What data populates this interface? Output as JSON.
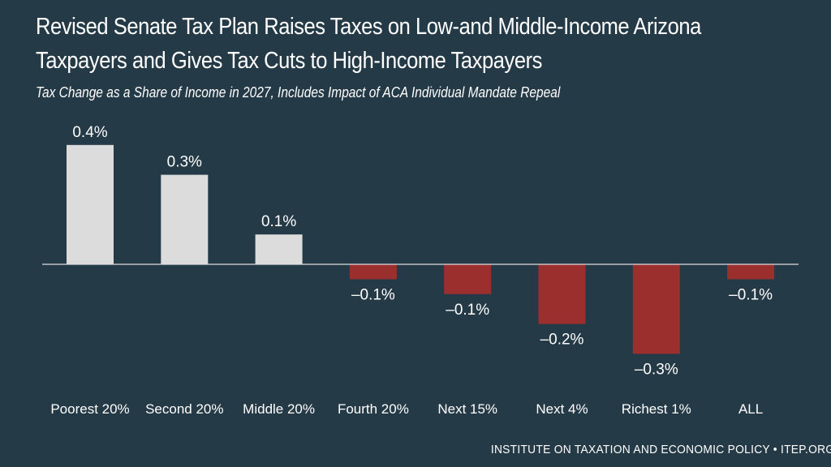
{
  "title_line1": "Revised Senate Tax Plan Raises Taxes on Low-and Middle-Income Arizona",
  "title_line2": "Taxpayers and Gives Tax Cuts to High-Income Taxpayers",
  "subtitle": "Tax Change as a Share of Income in 2027, Includes Impact of ACA Individual Mandate Repeal",
  "footer": "INSTITUTE ON TAXATION AND ECONOMIC POLICY • ITEP.ORG",
  "colors": {
    "background": "#253a47",
    "positive_bar": "#dcdcdc",
    "negative_bar": "#9b2f2e",
    "axis_line": "#dcdcdc",
    "text": "#ffffff"
  },
  "chart_data": {
    "type": "bar",
    "title": "Revised Senate Tax Plan Raises Taxes on Low-and Middle-Income Arizona Taxpayers and Gives Tax Cuts to High-Income Taxpayers",
    "subtitle": "Tax Change as a Share of Income in 2027, Includes Impact of ACA Individual Mandate Repeal",
    "xlabel": "",
    "ylabel": "",
    "categories": [
      "Poorest 20%",
      "Second 20%",
      "Middle 20%",
      "Fourth 20%",
      "Next 15%",
      "Next 4%",
      "Richest 1%",
      "ALL"
    ],
    "values": [
      0.4,
      0.3,
      0.1,
      -0.05,
      -0.1,
      -0.2,
      -0.3,
      -0.05
    ],
    "data_labels": [
      "0.4%",
      "0.3%",
      "0.1%",
      "–0.1%",
      "–0.1%",
      "–0.2%",
      "–0.3%",
      "–0.1%"
    ],
    "ylim": [
      -0.35,
      0.45
    ],
    "grid": false,
    "legend": "none"
  }
}
